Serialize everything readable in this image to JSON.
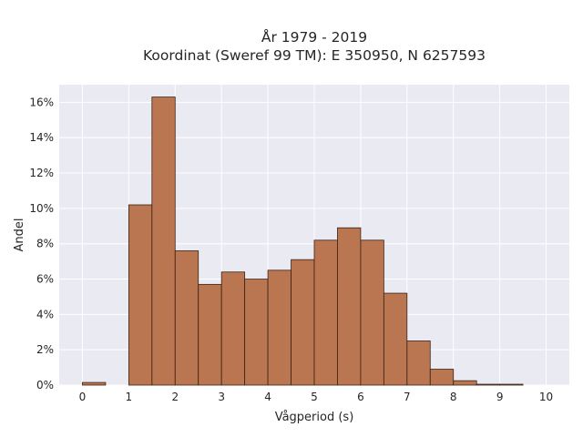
{
  "chart_data": {
    "type": "bar",
    "title_line1": "År 1979 - 2019",
    "title_line2": "Koordinat (Sweref 99 TM): E 350950, N 6257593",
    "xlabel": "Vågperiod (s)",
    "ylabel": "Andel",
    "bin_width": 0.5,
    "bins": [
      {
        "start": 0.0,
        "value": 0.15
      },
      {
        "start": 0.5,
        "value": 0.0
      },
      {
        "start": 1.0,
        "value": 10.2
      },
      {
        "start": 1.5,
        "value": 16.3
      },
      {
        "start": 2.0,
        "value": 7.6
      },
      {
        "start": 2.5,
        "value": 5.7
      },
      {
        "start": 3.0,
        "value": 6.4
      },
      {
        "start": 3.5,
        "value": 6.0
      },
      {
        "start": 4.0,
        "value": 6.5
      },
      {
        "start": 4.5,
        "value": 7.1
      },
      {
        "start": 5.0,
        "value": 8.2
      },
      {
        "start": 5.5,
        "value": 8.9
      },
      {
        "start": 6.0,
        "value": 8.2
      },
      {
        "start": 6.5,
        "value": 5.2
      },
      {
        "start": 7.0,
        "value": 2.5
      },
      {
        "start": 7.5,
        "value": 0.9
      },
      {
        "start": 8.0,
        "value": 0.25
      },
      {
        "start": 8.5,
        "value": 0.05
      },
      {
        "start": 9.0,
        "value": 0.05
      }
    ],
    "xlim": [
      -0.5,
      10.5
    ],
    "ylim": [
      0,
      17.0
    ],
    "x_ticks": [
      0,
      1,
      2,
      3,
      4,
      5,
      6,
      7,
      8,
      9,
      10
    ],
    "x_tick_labels": [
      "0",
      "1",
      "2",
      "3",
      "4",
      "5",
      "6",
      "7",
      "8",
      "9",
      "10"
    ],
    "y_ticks": [
      0,
      2,
      4,
      6,
      8,
      10,
      12,
      14,
      16
    ],
    "y_tick_labels": [
      "0%",
      "2%",
      "4%",
      "6%",
      "8%",
      "10%",
      "12%",
      "14%",
      "16%"
    ],
    "grid": true,
    "colors": {
      "bar_fill": "#b5683f",
      "bar_edge": "#3a2416",
      "plot_background": "#eaeaf2",
      "grid": "#ffffff"
    }
  }
}
